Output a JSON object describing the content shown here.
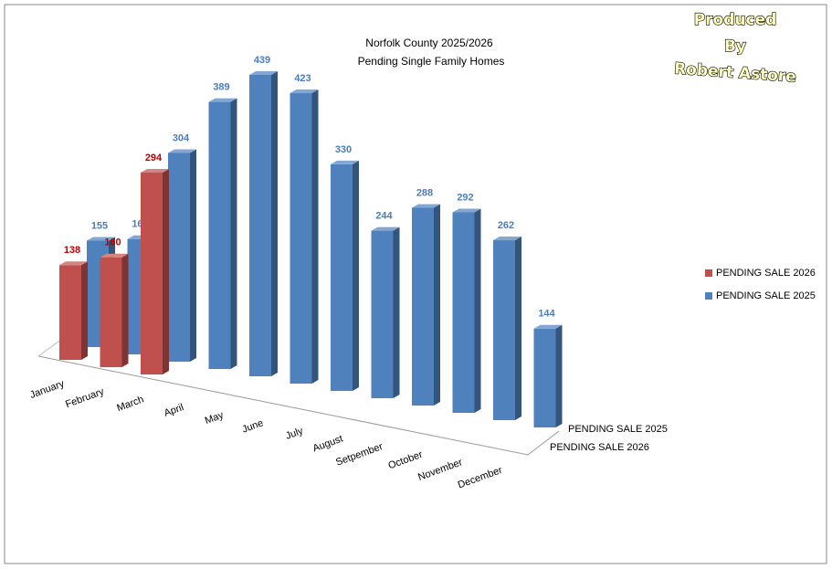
{
  "chart_data": {
    "type": "bar3d",
    "title": "Norfolk County 2025/2026",
    "subtitle": "Pending Single Family Homes",
    "annotations": [
      "Produced",
      "By",
      "Robert Astore"
    ],
    "categories": [
      "January",
      "February",
      "March",
      "April",
      "May",
      "June",
      "July",
      "August",
      "Setpember",
      "October",
      "November",
      "December"
    ],
    "series": [
      {
        "name": "PENDING SALE 2026",
        "color": "#c0504d",
        "values": [
          138,
          160,
          294,
          null,
          null,
          null,
          null,
          null,
          null,
          null,
          null,
          null
        ]
      },
      {
        "name": "PENDING SALE 2025",
        "color": "#4f81bd",
        "values": [
          155,
          168,
          304,
          389,
          439,
          423,
          330,
          244,
          288,
          292,
          262,
          144
        ]
      }
    ],
    "legend": "right"
  }
}
